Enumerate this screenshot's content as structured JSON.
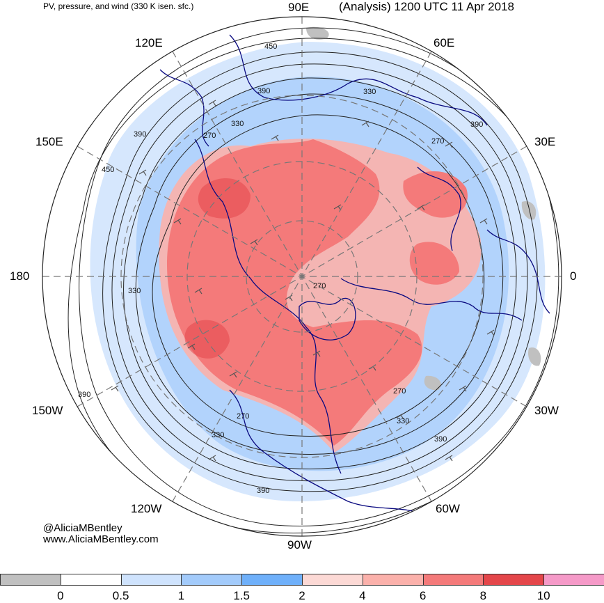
{
  "header": {
    "left_title": "PV, pressure, and wind (330 K isen. sfc.)",
    "right_title": "(Analysis) 1200 UTC 11 Apr 2018"
  },
  "longitude_labels": {
    "lon_90E": "90E",
    "lon_60E": "60E",
    "lon_120E": "120E",
    "lon_30E": "30E",
    "lon_150E": "150E",
    "lon_180": "180",
    "lon_0": "0",
    "lon_150W": "150W",
    "lon_30W": "30W",
    "lon_120W": "120W",
    "lon_60W": "60W",
    "lon_90W": "90W"
  },
  "contour_labels": [
    "450",
    "390",
    "330",
    "270",
    "390",
    "450",
    "270",
    "390",
    "270",
    "330",
    "270",
    "330",
    "390",
    "390",
    "270",
    "330",
    "390",
    "330"
  ],
  "credits": {
    "handle": "@AliciaMBentley",
    "website": "www.AliciaMBentley.com"
  },
  "colorbar": {
    "colors": [
      "#c0c0c0",
      "#ffffff",
      "#cfe3fd",
      "#a3cbfb",
      "#6fb0fa",
      "#fcd9d5",
      "#fbb1ab",
      "#f47a7a",
      "#e4464a",
      "#f59ac8"
    ],
    "labels": [
      "0",
      "0.5",
      "1",
      "1.5",
      "2",
      "4",
      "6",
      "8",
      "10"
    ]
  },
  "colors": {
    "high_pv": "#f47a7a",
    "mid_pv": "#fbb1ab",
    "low_pv": "#cfe3fd",
    "coast": "#0a0a80",
    "contour": "#222222"
  }
}
